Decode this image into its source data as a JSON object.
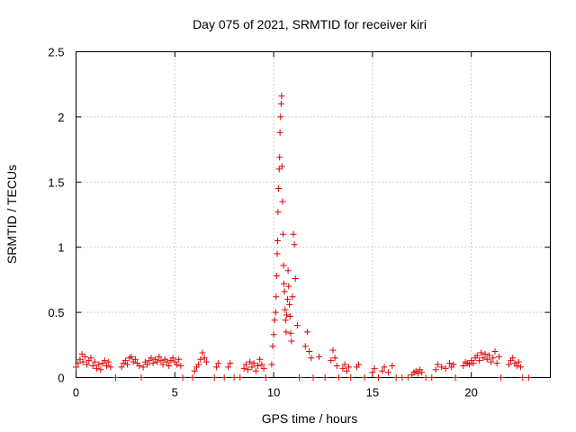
{
  "chart_data": {
    "type": "scatter",
    "title": "Day 075 of 2021, SRMTID for receiver kiri",
    "xlabel": "GPS time / hours",
    "ylabel": "SRMTID / TECUs",
    "xlim": [
      0,
      24
    ],
    "ylim": [
      0,
      2.5
    ],
    "grid": true,
    "x_ticks": [
      0,
      5,
      10,
      15,
      20
    ],
    "x_tick_labels": [
      "0",
      "5",
      "10",
      "15",
      "20"
    ],
    "y_ticks": [
      0,
      0.5,
      1,
      1.5,
      2,
      2.5
    ],
    "y_tick_labels": [
      "0",
      "0.5",
      "1",
      "1.5",
      "2",
      "2.5"
    ],
    "marker": "+",
    "color": "#e00000",
    "series": [
      {
        "name": "SRMTID",
        "points": [
          [
            0.0,
            0.08
          ],
          [
            0.1,
            0.11
          ],
          [
            0.2,
            0.14
          ],
          [
            0.3,
            0.18
          ],
          [
            0.35,
            0.12
          ],
          [
            0.45,
            0.16
          ],
          [
            0.55,
            0.1
          ],
          [
            0.65,
            0.13
          ],
          [
            0.75,
            0.15
          ],
          [
            0.85,
            0.09
          ],
          [
            0.95,
            0.12
          ],
          [
            1.05,
            0.07
          ],
          [
            1.15,
            0.1
          ],
          [
            1.25,
            0.06
          ],
          [
            1.35,
            0.11
          ],
          [
            1.45,
            0.13
          ],
          [
            1.55,
            0.09
          ],
          [
            1.65,
            0.12
          ],
          [
            1.75,
            0.08
          ],
          [
            2.0,
            0.0
          ],
          [
            2.3,
            0.08
          ],
          [
            2.4,
            0.11
          ],
          [
            2.5,
            0.13
          ],
          [
            2.6,
            0.1
          ],
          [
            2.7,
            0.15
          ],
          [
            2.8,
            0.16
          ],
          [
            2.9,
            0.12
          ],
          [
            3.0,
            0.14
          ],
          [
            3.1,
            0.11
          ],
          [
            3.2,
            0.09
          ],
          [
            3.3,
            0.0
          ],
          [
            3.4,
            0.08
          ],
          [
            3.5,
            0.12
          ],
          [
            3.6,
            0.1
          ],
          [
            3.7,
            0.13
          ],
          [
            3.8,
            0.15
          ],
          [
            3.9,
            0.11
          ],
          [
            4.0,
            0.14
          ],
          [
            4.1,
            0.12
          ],
          [
            4.2,
            0.16
          ],
          [
            4.3,
            0.13
          ],
          [
            4.4,
            0.1
          ],
          [
            4.5,
            0.14
          ],
          [
            4.6,
            0.12
          ],
          [
            4.7,
            0.09
          ],
          [
            4.8,
            0.13
          ],
          [
            4.9,
            0.15
          ],
          [
            5.0,
            0.12
          ],
          [
            5.1,
            0.1
          ],
          [
            5.2,
            0.14
          ],
          [
            5.3,
            0.09
          ],
          [
            5.4,
            0.0
          ],
          [
            5.9,
            0.0
          ],
          [
            6.0,
            0.05
          ],
          [
            6.1,
            0.08
          ],
          [
            6.2,
            0.1
          ],
          [
            6.3,
            0.14
          ],
          [
            6.4,
            0.19
          ],
          [
            6.5,
            0.15
          ],
          [
            6.6,
            0.12
          ],
          [
            7.0,
            0.0
          ],
          [
            7.1,
            0.08
          ],
          [
            7.2,
            0.11
          ],
          [
            7.5,
            0.0
          ],
          [
            7.7,
            0.08
          ],
          [
            7.8,
            0.11
          ],
          [
            8.0,
            0.0
          ],
          [
            8.3,
            0.0
          ],
          [
            8.5,
            0.07
          ],
          [
            8.6,
            0.1
          ],
          [
            8.7,
            0.06
          ],
          [
            8.8,
            0.12
          ],
          [
            8.9,
            0.08
          ],
          [
            9.0,
            0.11
          ],
          [
            9.1,
            0.05
          ],
          [
            9.2,
            0.09
          ],
          [
            9.3,
            0.14
          ],
          [
            9.4,
            0.1
          ],
          [
            9.5,
            0.07
          ],
          [
            9.6,
            0.0
          ],
          [
            9.9,
            0.1
          ],
          [
            9.95,
            0.24
          ],
          [
            10.0,
            0.33
          ],
          [
            10.05,
            0.44
          ],
          [
            10.1,
            0.5
          ],
          [
            10.12,
            0.62
          ],
          [
            10.15,
            0.78
          ],
          [
            10.18,
            0.95
          ],
          [
            10.2,
            1.05
          ],
          [
            10.22,
            1.27
          ],
          [
            10.25,
            1.45
          ],
          [
            10.28,
            1.6
          ],
          [
            10.3,
            1.69
          ],
          [
            10.32,
            1.88
          ],
          [
            10.35,
            2.0
          ],
          [
            10.38,
            2.1
          ],
          [
            10.4,
            2.16
          ],
          [
            10.42,
            1.62
          ],
          [
            10.45,
            1.35
          ],
          [
            10.48,
            1.1
          ],
          [
            10.5,
            0.86
          ],
          [
            10.52,
            0.72
          ],
          [
            10.55,
            0.66
          ],
          [
            10.58,
            0.52
          ],
          [
            10.6,
            0.44
          ],
          [
            10.63,
            0.35
          ],
          [
            10.66,
            0.48
          ],
          [
            10.7,
            0.6
          ],
          [
            10.73,
            0.82
          ],
          [
            10.76,
            0.7
          ],
          [
            10.8,
            0.56
          ],
          [
            10.83,
            0.47
          ],
          [
            10.86,
            0.34
          ],
          [
            10.9,
            0.28
          ],
          [
            10.95,
            0.62
          ],
          [
            11.0,
            1.1
          ],
          [
            11.05,
            1.02
          ],
          [
            11.1,
            0.76
          ],
          [
            11.2,
            0.4
          ],
          [
            11.3,
            0.0
          ],
          [
            11.6,
            0.24
          ],
          [
            11.7,
            0.35
          ],
          [
            11.8,
            0.2
          ],
          [
            11.9,
            0.15
          ],
          [
            12.0,
            0.0
          ],
          [
            12.3,
            0.16
          ],
          [
            12.6,
            0.0
          ],
          [
            12.9,
            0.13
          ],
          [
            13.0,
            0.21
          ],
          [
            13.1,
            0.15
          ],
          [
            13.2,
            0.09
          ],
          [
            13.3,
            0.0
          ],
          [
            13.5,
            0.07
          ],
          [
            13.6,
            0.1
          ],
          [
            13.7,
            0.05
          ],
          [
            13.8,
            0.08
          ],
          [
            13.9,
            0.0
          ],
          [
            14.2,
            0.08
          ],
          [
            14.3,
            0.1
          ],
          [
            14.6,
            0.0
          ],
          [
            15.0,
            0.04
          ],
          [
            15.1,
            0.07
          ],
          [
            15.3,
            0.0
          ],
          [
            15.5,
            0.05
          ],
          [
            15.6,
            0.08
          ],
          [
            15.8,
            0.04
          ],
          [
            16.0,
            0.09
          ],
          [
            16.2,
            0.0
          ],
          [
            16.5,
            0.0
          ],
          [
            16.8,
            0.0
          ],
          [
            17.0,
            0.02
          ],
          [
            17.1,
            0.04
          ],
          [
            17.2,
            0.05
          ],
          [
            17.3,
            0.03
          ],
          [
            17.4,
            0.06
          ],
          [
            17.5,
            0.04
          ],
          [
            17.7,
            0.0
          ],
          [
            18.0,
            0.0
          ],
          [
            18.2,
            0.06
          ],
          [
            18.3,
            0.1
          ],
          [
            18.5,
            0.08
          ],
          [
            18.7,
            0.07
          ],
          [
            18.9,
            0.11
          ],
          [
            19.0,
            0.08
          ],
          [
            19.1,
            0.1
          ],
          [
            19.2,
            0.0
          ],
          [
            19.6,
            0.09
          ],
          [
            19.7,
            0.12
          ],
          [
            19.8,
            0.11
          ],
          [
            19.9,
            0.1
          ],
          [
            20.0,
            0.13
          ],
          [
            20.1,
            0.11
          ],
          [
            20.2,
            0.15
          ],
          [
            20.3,
            0.17
          ],
          [
            20.4,
            0.13
          ],
          [
            20.5,
            0.19
          ],
          [
            20.6,
            0.15
          ],
          [
            20.7,
            0.18
          ],
          [
            20.8,
            0.14
          ],
          [
            20.9,
            0.17
          ],
          [
            21.0,
            0.12
          ],
          [
            21.1,
            0.15
          ],
          [
            21.2,
            0.2
          ],
          [
            21.3,
            0.11
          ],
          [
            21.4,
            0.16
          ],
          [
            21.5,
            0.0
          ],
          [
            21.9,
            0.1
          ],
          [
            22.0,
            0.13
          ],
          [
            22.1,
            0.15
          ],
          [
            22.2,
            0.11
          ],
          [
            22.3,
            0.09
          ],
          [
            22.4,
            0.12
          ],
          [
            22.5,
            0.08
          ],
          [
            22.6,
            0.0
          ],
          [
            22.9,
            0.0
          ]
        ]
      }
    ]
  }
}
